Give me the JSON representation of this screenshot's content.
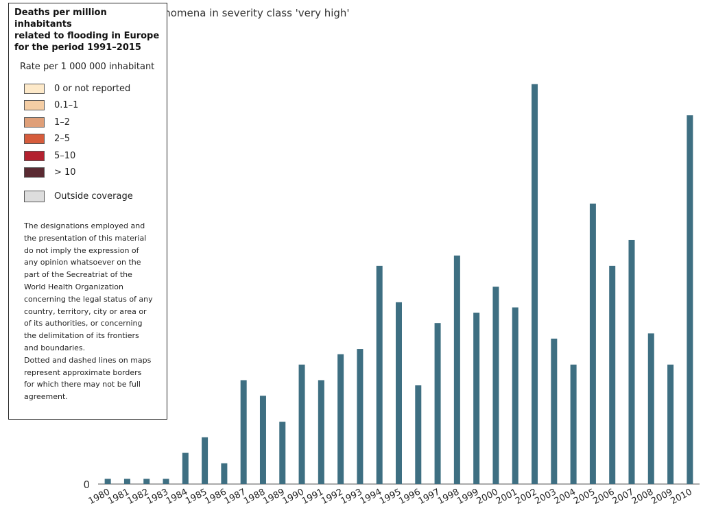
{
  "chart_data": {
    "type": "bar",
    "title": "enomena in severity class 'very high'",
    "categories": [
      "1980",
      "1981",
      "1982",
      "1983",
      "1984",
      "1985",
      "1986",
      "1987",
      "1988",
      "1989",
      "1990",
      "1991",
      "1992",
      "1993",
      "1994",
      "1995",
      "1996",
      "1997",
      "1998",
      "1999",
      "2000",
      "2001",
      "2002",
      "2003",
      "2004",
      "2005",
      "2006",
      "2007",
      "2008",
      "2009",
      "2010"
    ],
    "series": [
      {
        "values": [
          1,
          1,
          1,
          1,
          6,
          9,
          4,
          20,
          17,
          12,
          23,
          20,
          25,
          26,
          42,
          35,
          19,
          31,
          44,
          33,
          38,
          34,
          77,
          28,
          23,
          54,
          42,
          47,
          29,
          23,
          71
        ]
      }
    ],
    "ylim": [
      0,
      80
    ],
    "ytick_labels": [
      "0"
    ],
    "grid": false,
    "bar_color": "#3e6f82"
  },
  "legend": {
    "title": "Deaths per million inhabitants\nrelated to flooding in Europe\nfor the period 1991–2015",
    "subtitle": "Rate per 1 000 000 inhabitant",
    "items": [
      {
        "label": "0 or not reported",
        "color": "#fde9c9"
      },
      {
        "label": "0.1–1",
        "color": "#f4cda4"
      },
      {
        "label": "1–2",
        "color": "#df9f78"
      },
      {
        "label": "2–5",
        "color": "#d65c3c"
      },
      {
        "label": "5–10",
        "color": "#b3212f"
      },
      {
        "label": "> 10",
        "color": "#5a2a32"
      }
    ],
    "outside": {
      "label": "Outside coverage",
      "color": "#dddddd"
    },
    "disclaimer": "The designations employed and\nthe presentation of this material\ndo not imply the expression of\nany opinion whatsoever on the\npart of the Secreatriat of the\nWorld Health Organization\nconcerning the legal status of any\ncountry, territory, city or area or\nof its authorities, or concerning\nthe delimitation of its frontiers\nand boundaries.\nDotted and dashed lines on maps\nrepresent approximate borders\nfor which there may not be full\nagreement."
  }
}
